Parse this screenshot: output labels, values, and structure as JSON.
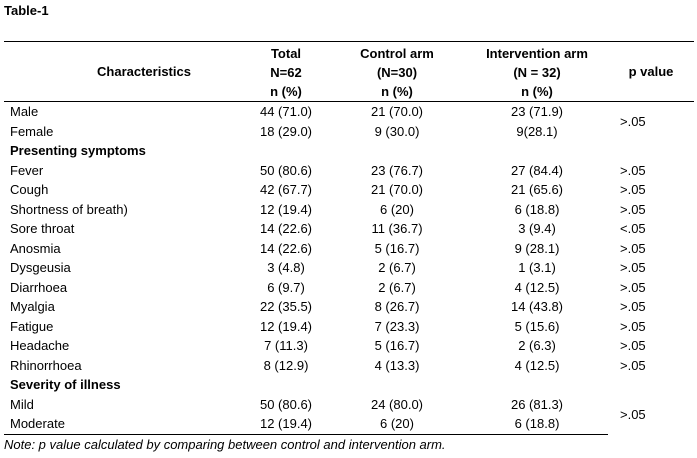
{
  "title": "Table-1",
  "header": {
    "characteristics": "Characteristics",
    "total": [
      "Total",
      "N=62",
      "n (%)"
    ],
    "control": [
      "Control arm",
      "(N=30)",
      "n (%)"
    ],
    "intervention": [
      "Intervention arm",
      "(N = 32)",
      "n (%)"
    ],
    "pvalue": "p value"
  },
  "sex": {
    "rows": [
      {
        "label": "Male",
        "total": "44 (71.0)",
        "control": "21 (70.0)",
        "intervention": "23 (71.9)"
      },
      {
        "label": "Female",
        "total": "18 (29.0)",
        "control": "9 (30.0)",
        "intervention": "9(28.1)"
      }
    ],
    "p": ">.05"
  },
  "symptoms": {
    "heading": "Presenting symptoms",
    "rows": [
      {
        "label": "Fever",
        "total": "50 (80.6)",
        "control": "23 (76.7)",
        "intervention": "27 (84.4)",
        "p": ">.05"
      },
      {
        "label": "Cough",
        "total": "42 (67.7)",
        "control": "21 (70.0)",
        "intervention": "21 (65.6)",
        "p": ">.05"
      },
      {
        "label": "Shortness of breath)",
        "total": "12 (19.4)",
        "control": "6 (20)",
        "intervention": "6 (18.8)",
        "p": ">.05"
      },
      {
        "label": "Sore throat",
        "total": "14 (22.6)",
        "control": "11 (36.7)",
        "intervention": "3 (9.4)",
        "p": "<.05"
      },
      {
        "label": "Anosmia",
        "total": "14 (22.6)",
        "control": "5 (16.7)",
        "intervention": "9 (28.1)",
        "p": ">.05"
      },
      {
        "label": "Dysgeusia",
        "total": "3 (4.8)",
        "control": "2 (6.7)",
        "intervention": "1 (3.1)",
        "p": ">.05"
      },
      {
        "label": "Diarrhoea",
        "total": "6 (9.7)",
        "control": "2 (6.7)",
        "intervention": "4 (12.5)",
        "p": ">.05"
      },
      {
        "label": "Myalgia",
        "total": "22 (35.5)",
        "control": "8 (26.7)",
        "intervention": "14 (43.8)",
        "p": ">.05"
      },
      {
        "label": "Fatigue",
        "total": "12 (19.4)",
        "control": "7 (23.3)",
        "intervention": "5 (15.6)",
        "p": ">.05"
      },
      {
        "label": "Headache",
        "total": "7 (11.3)",
        "control": "5 (16.7)",
        "intervention": "2 (6.3)",
        "p": ">.05"
      },
      {
        "label": "Rhinorrhoea",
        "total": "8 (12.9)",
        "control": "4 (13.3)",
        "intervention": "4 (12.5)",
        "p": ">.05"
      }
    ]
  },
  "severity": {
    "heading": "Severity of illness",
    "rows": [
      {
        "label": "Mild",
        "total": "50 (80.6)",
        "control": "24 (80.0)",
        "intervention": "26 (81.3)"
      },
      {
        "label": "Moderate",
        "total": "12 (19.4)",
        "control": "6 (20)",
        "intervention": "6 (18.8)"
      }
    ],
    "p": ">.05"
  },
  "note": "Note: p value calculated by comparing between control and intervention arm."
}
